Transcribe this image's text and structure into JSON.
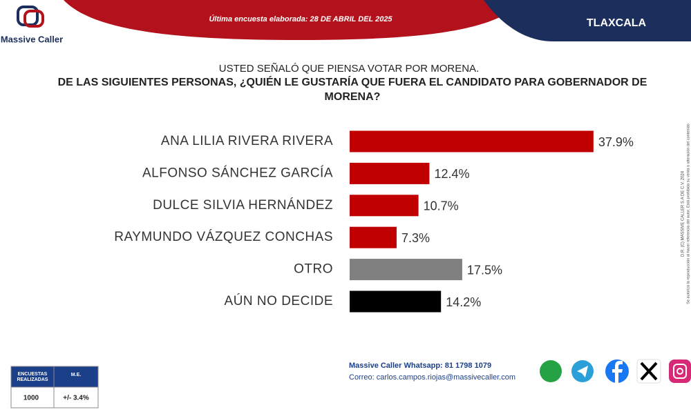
{
  "header": {
    "logo": "Massive Caller",
    "survey_date": "Última encuesta elaborada: 28 DE ABRIL DEL 2025",
    "state": "TLAXCALA"
  },
  "chart_data": {
    "type": "bar",
    "orientation": "horizontal",
    "subtitle": "USTED SEÑALÓ QUE PIENSA VOTAR POR MORENA.",
    "title": "DE LAS SIGUIENTES PERSONAS, ¿QUIÉN LE GUSTARÍA QUE FUERA EL CANDIDATO PARA GOBERNADOR DE MORENA?",
    "categories": [
      "ANA LILIA RIVERA RIVERA",
      "ALFONSO SÁNCHEZ GARCÍA",
      "DULCE SILVIA HERNÁNDEZ",
      "RAYMUNDO VÁZQUEZ CONCHAS",
      "OTRO",
      "AÚN NO DECIDE"
    ],
    "values": [
      37.9,
      12.4,
      10.7,
      7.3,
      17.5,
      14.2
    ],
    "value_labels": [
      "37.9%",
      "12.4%",
      "10.7%",
      "7.3%",
      "17.5%",
      "14.2%"
    ],
    "colors": [
      "#c00000",
      "#c00000",
      "#c00000",
      "#c00000",
      "#808080",
      "#000000"
    ]
  },
  "table": {
    "headers": [
      "ENCUESTAS REALIZADAS",
      "M.E."
    ],
    "row": [
      "1000",
      "+/- 3.4%"
    ]
  },
  "footer": {
    "whatsapp": "Massive Caller Whatsapp: 81 1798 1079",
    "email": "Correo: carlos.campos.riojas@massivecaller.com"
  },
  "side_note": {
    "copyright": "D.R. (C) MASSIVE CALLER S.A DE C.V. 2024",
    "permission": "Se autoriza la reproducción al hacer referencia del autor. Está prohibida su venta o alteración del contenido"
  }
}
